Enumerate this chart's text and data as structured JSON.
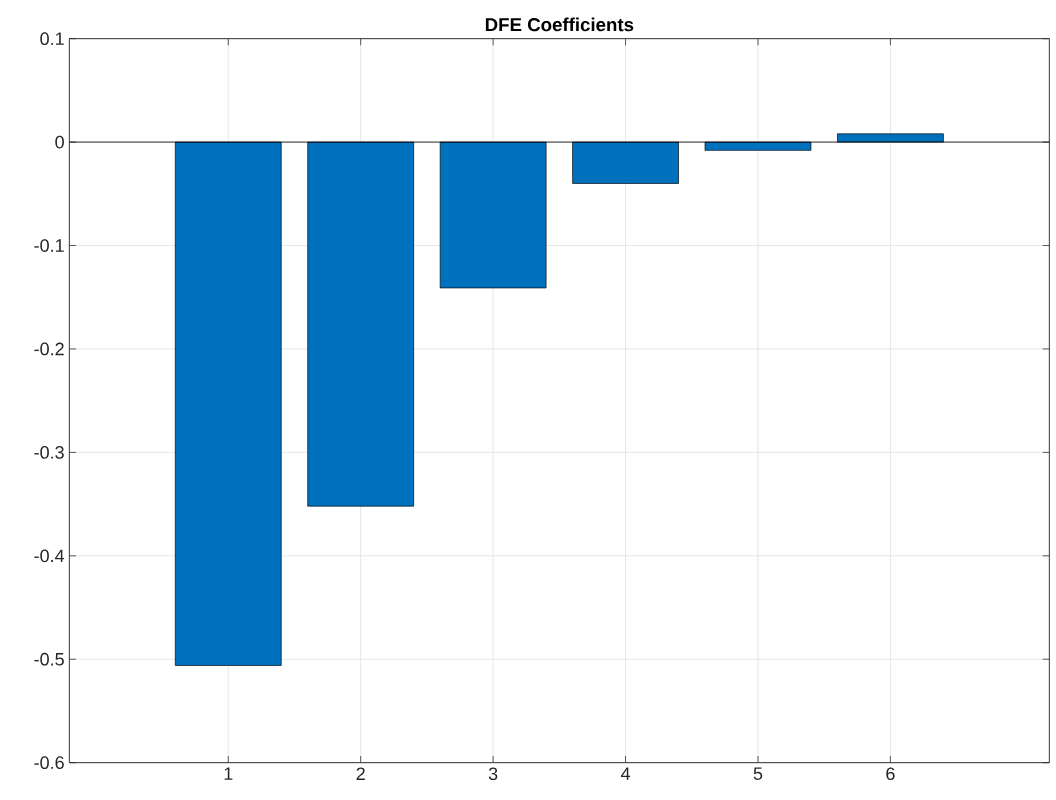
{
  "chart_data": {
    "type": "bar",
    "title": "DFE Coefficients",
    "x": [
      1,
      2,
      3,
      4,
      5,
      6
    ],
    "values": [
      -0.506,
      -0.352,
      -0.141,
      -0.04,
      -0.008,
      0.008
    ],
    "color": "#0072bd",
    "xlim": [
      -0.2,
      7.2
    ],
    "xticks": [
      1,
      2,
      3,
      4,
      5,
      6
    ],
    "ylim": [
      -0.6,
      0.1
    ],
    "yticks": [
      -0.6,
      -0.5,
      -0.4,
      -0.3,
      -0.2,
      -0.1,
      0,
      0.1
    ],
    "grid": true
  }
}
